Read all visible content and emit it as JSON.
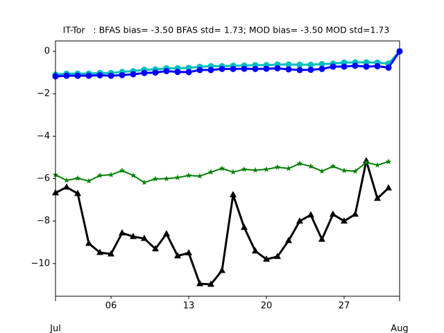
{
  "chart_data": {
    "type": "line",
    "title": "IT-Tor   : BFAS bias= -3.50 BFAS std= 1.73; MOD bias= -3.50 MOD std=1.73",
    "x": [
      0,
      1,
      2,
      3,
      4,
      5,
      6,
      7,
      8,
      9,
      10,
      11,
      12,
      13,
      14,
      15,
      16,
      17,
      18,
      19,
      20,
      21,
      22,
      23,
      24,
      25,
      26,
      27,
      28,
      29,
      30,
      31
    ],
    "xlim": [
      0,
      31
    ],
    "xticks": [
      {
        "value": 5,
        "label": "06"
      },
      {
        "value": 12,
        "label": "13"
      },
      {
        "value": 19,
        "label": "20"
      },
      {
        "value": 26,
        "label": "27"
      }
    ],
    "month_ticks": [
      {
        "value": 0,
        "label": "Jul"
      },
      {
        "value": 31,
        "label": "Aug"
      }
    ],
    "ylim": [
      -11.54,
      0.49
    ],
    "yticks": [
      0,
      {
        "value": -2,
        "label": "−2"
      },
      {
        "value": -4,
        "label": "−4"
      },
      {
        "value": -6,
        "label": "−6"
      },
      {
        "value": -8,
        "label": "−8"
      },
      {
        "value": -10,
        "label": "−10"
      }
    ],
    "grid": false,
    "series": [
      {
        "color": "#000000",
        "marker": "triangle",
        "line_width": 3,
        "values": [
          -6.67,
          -6.4,
          -6.7,
          -9.05,
          -9.48,
          -9.55,
          -8.56,
          -8.73,
          -8.82,
          -9.31,
          -8.6,
          -9.64,
          -9.5,
          -10.95,
          -10.98,
          -10.33,
          -6.76,
          -8.3,
          -9.41,
          -9.8,
          -9.67,
          -8.92,
          -8.0,
          -7.71,
          -8.86,
          -7.68,
          -8.0,
          -7.68,
          -5.16,
          -6.93,
          -6.44,
          null
        ]
      },
      {
        "color": "#008000",
        "marker": "star",
        "line_width": 2,
        "values": [
          -5.82,
          -6.08,
          -5.98,
          -6.11,
          -5.85,
          -5.82,
          -5.62,
          -5.85,
          -6.18,
          -6.01,
          -6.0,
          -5.95,
          -5.85,
          -5.88,
          -5.69,
          -5.52,
          -5.69,
          -5.56,
          -5.6,
          -5.56,
          -5.46,
          -5.52,
          -5.29,
          -5.42,
          -5.65,
          -5.42,
          -5.62,
          -5.65,
          -5.23,
          -5.36,
          -5.2,
          null
        ]
      },
      {
        "color": "#00bfbf",
        "marker": "circle",
        "line_width": 3,
        "values": [
          -1.1,
          -1.05,
          -1.05,
          -1.05,
          -1.02,
          -1.02,
          -0.97,
          -0.93,
          -0.87,
          -0.85,
          -0.8,
          -0.8,
          -0.78,
          -0.73,
          -0.7,
          -0.7,
          -0.68,
          -0.67,
          -0.65,
          -0.65,
          -0.62,
          -0.62,
          -0.63,
          -0.63,
          -0.6,
          -0.58,
          -0.53,
          -0.52,
          -0.52,
          -0.53,
          -0.58,
          0
        ]
      },
      {
        "color": "#0000ff",
        "marker": "circle",
        "line_width": 3,
        "values": [
          -1.18,
          -1.15,
          -1.15,
          -1.15,
          -1.13,
          -1.15,
          -1.12,
          -1.08,
          -1.02,
          -1.0,
          -0.93,
          -0.97,
          -0.98,
          -0.88,
          -0.88,
          -0.83,
          -0.83,
          -0.82,
          -0.83,
          -0.82,
          -0.8,
          -0.85,
          -0.88,
          -0.87,
          -0.83,
          -0.72,
          -0.72,
          -0.68,
          -0.72,
          -0.7,
          -0.77,
          0
        ]
      }
    ]
  }
}
